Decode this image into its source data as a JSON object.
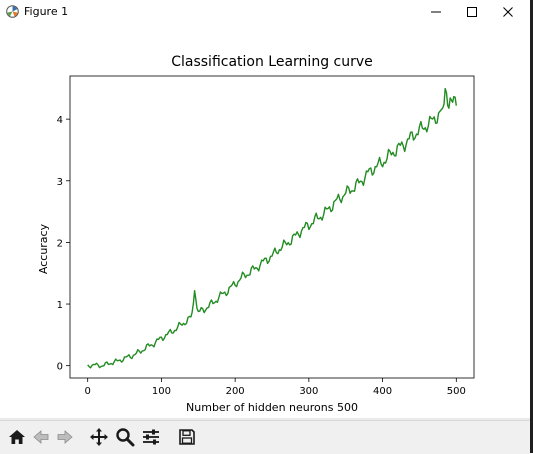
{
  "window": {
    "title": "Figure 1",
    "controls": [
      "minimize-icon",
      "maximize-icon",
      "close-icon"
    ]
  },
  "toolbar": {
    "buttons": [
      "home-icon",
      "back-arrow-icon",
      "forward-arrow-icon",
      "pan-icon",
      "zoom-icon",
      "configure-subplots-icon",
      "save-icon"
    ]
  },
  "chart_data": {
    "type": "line",
    "title": "Classification Learning curve",
    "xlabel": "Number of hidden neurons 500",
    "ylabel": "Accuracy",
    "xlim": [
      -24,
      524
    ],
    "ylim": [
      -0.2,
      4.7
    ],
    "xticks": [
      0,
      100,
      200,
      300,
      400,
      500
    ],
    "xtick_labels": [
      "0",
      "100",
      "200",
      "300",
      "400",
      "500"
    ],
    "yticks": [
      0,
      1,
      2,
      3,
      4
    ],
    "ytick_labels": [
      "0",
      "1",
      "2",
      "3",
      "4"
    ],
    "grid": false,
    "series": [
      {
        "color": "#228b22",
        "x": [
          0,
          10,
          20,
          30,
          40,
          50,
          60,
          70,
          80,
          90,
          100,
          110,
          120,
          130,
          140,
          145,
          150,
          160,
          170,
          180,
          190,
          200,
          210,
          220,
          230,
          240,
          250,
          260,
          270,
          280,
          290,
          300,
          310,
          320,
          330,
          340,
          350,
          360,
          370,
          380,
          390,
          400,
          410,
          420,
          430,
          440,
          450,
          460,
          470,
          480,
          485,
          490,
          495,
          500
        ],
        "y": [
          0.0,
          0.01,
          0.0,
          0.04,
          0.07,
          0.12,
          0.16,
          0.22,
          0.3,
          0.36,
          0.45,
          0.52,
          0.6,
          0.69,
          0.78,
          1.2,
          0.86,
          0.93,
          1.02,
          1.13,
          1.22,
          1.33,
          1.44,
          1.52,
          1.6,
          1.7,
          1.78,
          1.9,
          1.98,
          2.08,
          2.2,
          2.28,
          2.38,
          2.46,
          2.58,
          2.7,
          2.8,
          2.88,
          2.98,
          3.12,
          3.22,
          3.3,
          3.42,
          3.52,
          3.6,
          3.72,
          3.82,
          3.9,
          4.0,
          4.12,
          4.5,
          4.2,
          4.3,
          4.22
        ]
      }
    ]
  }
}
